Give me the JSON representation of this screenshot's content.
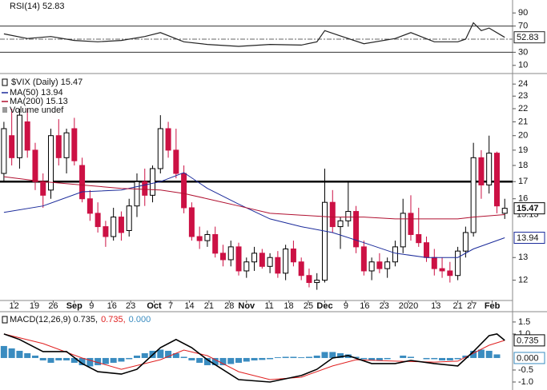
{
  "chart_data": [
    {
      "type": "line",
      "title": "RSI(14) 52.83",
      "xlim": [
        -0.5,
        65
      ],
      "ylim": [
        0,
        100
      ],
      "yticks": [
        10,
        30,
        70,
        90
      ],
      "hlines": [
        30,
        70
      ],
      "midline": 50,
      "series": [
        {
          "name": "RSI(14)",
          "color": "#222222",
          "x": [
            0,
            3,
            6,
            9,
            12,
            15,
            18,
            20,
            23,
            26,
            30,
            34,
            38,
            40,
            41,
            43,
            46,
            50,
            52,
            55,
            58,
            59,
            60,
            61,
            62,
            64
          ],
          "values": [
            58,
            51,
            54,
            48,
            46,
            48,
            54,
            60,
            46,
            42,
            39,
            42,
            41,
            46,
            63,
            55,
            43,
            51,
            60,
            46,
            46,
            50,
            75,
            63,
            67,
            52.83
          ]
        }
      ]
    },
    {
      "type": "candlestick",
      "title": "$VIX (Daily) 15.47",
      "volume_label": "Volume undef",
      "log": true,
      "xlim": [
        -0.5,
        65
      ],
      "ylim": [
        11.2,
        24.7
      ],
      "yticks": [
        12,
        13,
        16,
        17,
        18,
        19,
        20,
        21,
        22,
        23,
        24
      ],
      "hlines": [
        17
      ],
      "hline_color": "#000000",
      "up_color": "#000000",
      "down_color": "#cc1144",
      "xticks": [
        {
          "value": 1.3,
          "label": "12"
        },
        {
          "value": 3.9,
          "label": "19"
        },
        {
          "value": 6.3,
          "label": "26"
        },
        {
          "value": 9.0,
          "label": "Sep"
        },
        {
          "value": 11.2,
          "label": "9"
        },
        {
          "value": 13.8,
          "label": "16"
        },
        {
          "value": 16.2,
          "label": "23"
        },
        {
          "value": 19.2,
          "label": "Oct"
        },
        {
          "value": 21.3,
          "label": "7"
        },
        {
          "value": 23.7,
          "label": "14"
        },
        {
          "value": 26.2,
          "label": "21"
        },
        {
          "value": 28.8,
          "label": "28"
        },
        {
          "value": 31.0,
          "label": "Nov"
        },
        {
          "value": 33.9,
          "label": "11"
        },
        {
          "value": 36.4,
          "label": "18"
        },
        {
          "value": 38.9,
          "label": "25"
        },
        {
          "value": 41.0,
          "label": "Dec"
        },
        {
          "value": 43.7,
          "label": "9"
        },
        {
          "value": 46.1,
          "label": "16"
        },
        {
          "value": 48.6,
          "label": "23"
        },
        {
          "value": 51.7,
          "label": "2020"
        },
        {
          "value": 55.2,
          "label": "13"
        },
        {
          "value": 58.0,
          "label": "21"
        },
        {
          "value": 59.8,
          "label": "27"
        },
        {
          "value": 62.4,
          "label": "Feb"
        }
      ],
      "open": [
        17.5,
        20,
        18.5,
        21,
        19,
        17,
        16.5,
        20,
        18.5,
        20.5,
        18,
        16,
        15.2,
        14.5,
        14,
        15,
        14.3,
        15.6,
        17,
        16.2,
        17.8,
        20.5,
        19,
        17.5,
        15.5,
        14,
        13.8,
        14.1,
        13.2,
        12.9,
        13.5,
        12.4,
        12.8,
        13.2,
        12.6,
        13,
        12.3,
        13.4,
        12.8,
        12.2,
        11.9,
        12,
        15.8,
        14.5,
        14.8,
        15.3,
        13.5,
        12.4,
        12.8,
        12.5,
        12.8,
        13.5,
        15.2,
        14.1,
        13.7,
        13,
        12.5,
        12.4,
        12.2,
        13.3,
        14.2,
        18.5,
        16.8,
        18.8,
        15.2
      ],
      "high": [
        21,
        22,
        22,
        22,
        19.5,
        17.5,
        20.5,
        21.2,
        20.5,
        21.3,
        18.5,
        16.5,
        15.8,
        14.8,
        15.5,
        15.3,
        16,
        17.5,
        17.8,
        18,
        21.5,
        21,
        20.5,
        18,
        15.8,
        14.5,
        14.3,
        14.5,
        13.6,
        13.8,
        13.7,
        13,
        13.5,
        13.4,
        13.2,
        13.3,
        13.6,
        13.8,
        13,
        12.5,
        12.3,
        17.8,
        16.5,
        15,
        17,
        15.6,
        13.8,
        13,
        13.2,
        13,
        13.8,
        16,
        16.2,
        15.5,
        14,
        13.4,
        13,
        12.8,
        13.5,
        14.5,
        19.5,
        19,
        20,
        18.9,
        16
      ],
      "low": [
        17,
        18,
        17.8,
        18.5,
        16.5,
        15.5,
        16,
        18,
        17.5,
        18,
        15.8,
        14.8,
        14.2,
        13.5,
        13.8,
        13.8,
        14,
        15,
        15.6,
        15.8,
        17.5,
        18.5,
        17.2,
        15.2,
        13.8,
        13.4,
        13.5,
        13,
        12.6,
        12.6,
        12.2,
        12.1,
        12.4,
        12.5,
        12.3,
        12.1,
        12,
        12.6,
        12,
        11.7,
        11.6,
        11.9,
        14.2,
        13.4,
        14.5,
        13.2,
        12.2,
        12,
        12.3,
        12.1,
        12.6,
        13.2,
        13.8,
        13.5,
        12.8,
        12.2,
        12.1,
        11.9,
        12,
        13,
        14,
        16,
        16.3,
        15.2,
        14.9
      ],
      "close": [
        20.5,
        18.5,
        21.5,
        19,
        17,
        16.2,
        20,
        18.5,
        20.2,
        18.3,
        16,
        15.2,
        14.5,
        14,
        15,
        14.2,
        15.6,
        17,
        16.2,
        17.8,
        20.5,
        19,
        17.5,
        15.5,
        14,
        13.8,
        14.1,
        13.2,
        12.9,
        13.5,
        12.4,
        12.8,
        13.2,
        12.6,
        13,
        12.3,
        13.4,
        12.8,
        12.2,
        11.9,
        12,
        15.8,
        14.5,
        14.8,
        15.3,
        13.5,
        12.4,
        12.8,
        12.5,
        12.8,
        13.5,
        15.2,
        14.1,
        13.7,
        13,
        12.5,
        12.4,
        12.2,
        13.3,
        14.2,
        18.5,
        16.8,
        18.8,
        15.6,
        15.47
      ],
      "series": [
        {
          "name": "MA(50) 13.94",
          "color": "#1a2a9a",
          "x": [
            0,
            5,
            10,
            15,
            20,
            23,
            26,
            30,
            34,
            38,
            42,
            46,
            50,
            54,
            58,
            60,
            64
          ],
          "values": [
            15.25,
            15.6,
            16.4,
            16.5,
            17.0,
            17.55,
            16.6,
            15.7,
            14.9,
            14.5,
            14.2,
            13.7,
            13.2,
            13.0,
            13.0,
            13.4,
            13.94
          ]
        },
        {
          "name": "MA(200) 15.13",
          "color": "#b01030",
          "x": [
            0,
            5,
            10,
            15,
            20,
            23,
            26,
            30,
            34,
            38,
            42,
            46,
            50,
            54,
            58,
            60,
            64
          ],
          "values": [
            17.3,
            17.0,
            16.8,
            16.6,
            16.5,
            16.3,
            16.0,
            15.6,
            15.2,
            15.1,
            15.0,
            15.0,
            14.9,
            14.9,
            14.9,
            15.0,
            15.13
          ]
        }
      ]
    },
    {
      "type": "macd",
      "title": "MACD(12,26,9) 0.735,",
      "signal_label": "0.735,",
      "hist_label": "0.000",
      "xlim": [
        -0.5,
        65
      ],
      "ylim": [
        -1.2,
        1.83
      ],
      "yticks": [
        {
          "value": 1.5,
          "label": "1.5"
        },
        {
          "value": 1,
          "label": "1.0"
        },
        {
          "value": -0.5,
          "label": "-0.5"
        },
        {
          "value": -1,
          "label": "-1.0"
        }
      ],
      "histogram": {
        "color": "#3a8cc0",
        "last_value_label": "0.000",
        "values": [
          0.5,
          0.4,
          0.3,
          0.2,
          0.1,
          -0.1,
          -0.2,
          -0.1,
          -0.1,
          -0.2,
          -0.3,
          -0.35,
          -0.3,
          -0.25,
          -0.2,
          -0.15,
          -0.05,
          0.1,
          0.2,
          0.3,
          0.35,
          0.3,
          0.2,
          0.05,
          -0.1,
          -0.2,
          -0.3,
          -0.3,
          -0.3,
          -0.25,
          -0.2,
          -0.15,
          -0.1,
          -0.08,
          -0.05,
          0.03,
          0.05,
          0.05,
          0.03,
          0.05,
          0.1,
          0.25,
          0.25,
          0.2,
          0.15,
          0.05,
          -0.05,
          -0.1,
          -0.1,
          -0.05,
          0,
          0.1,
          0.05,
          0,
          -0.05,
          -0.05,
          -0.1,
          -0.1,
          -0.05,
          0.1,
          0.3,
          0.35,
          0.3,
          0.15,
          0
        ]
      },
      "series": [
        {
          "name": "MACD",
          "color": "#000000",
          "x": [
            0,
            2,
            5,
            8,
            10,
            12,
            15,
            17,
            20,
            22,
            24,
            26,
            30,
            34,
            38,
            40,
            42,
            44,
            47,
            50,
            52,
            55,
            58,
            60,
            62,
            63,
            64
          ],
          "values": [
            1.0,
            0.77,
            0.27,
            0.27,
            -0.23,
            -0.57,
            -0.67,
            -0.47,
            0.43,
            0.77,
            0.43,
            -0.07,
            -0.9,
            -1.0,
            -0.73,
            -0.47,
            0,
            0.1,
            -0.23,
            -0.23,
            -0.1,
            -0.23,
            -0.33,
            0.27,
            0.93,
            1.0,
            0.735
          ]
        },
        {
          "name": "Signal",
          "color": "#e02020",
          "x": [
            0,
            5,
            10,
            15,
            20,
            23,
            26,
            30,
            34,
            38,
            42,
            45,
            50,
            55,
            58,
            62,
            64
          ],
          "values": [
            1.0,
            0.6,
            0,
            -0.47,
            -0.07,
            0.33,
            0.1,
            -0.57,
            -0.9,
            -0.8,
            -0.33,
            -0.07,
            -0.13,
            -0.17,
            -0.13,
            0.53,
            0.735
          ]
        }
      ]
    }
  ]
}
